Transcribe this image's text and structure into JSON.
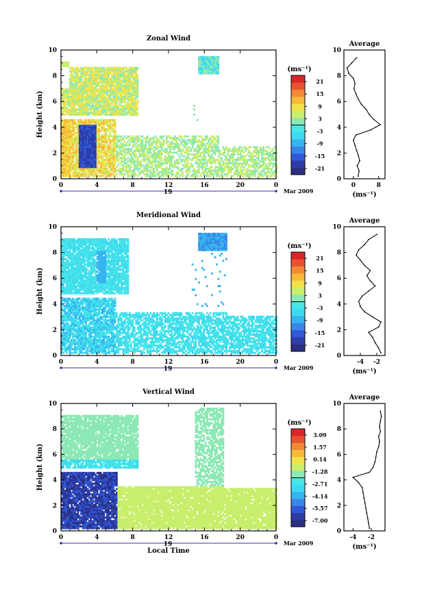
{
  "date_label": "Mar 2009",
  "day_label": "19",
  "colorbar_unit": "(ms⁻¹)",
  "chart_data": [
    {
      "type": "heatmap",
      "title": "Zonal Wind",
      "xlabel": "",
      "ylabel": "Height (km)",
      "xlim": [
        0,
        24
      ],
      "ylim": [
        0,
        10
      ],
      "xticks": [
        "0",
        "4",
        "8",
        "12",
        "16",
        "20",
        "0"
      ],
      "yticks": [
        "0",
        "2",
        "4",
        "6",
        "8",
        "10"
      ],
      "colorbar": {
        "unit": "(ms⁻¹)",
        "ticks": [
          "21",
          "15",
          "9",
          "3",
          "-3",
          "-9",
          "-15",
          "-21"
        ]
      },
      "profile": {
        "title": "Average",
        "xlabel": "(ms⁻¹)",
        "xticks": [
          "0",
          "8"
        ],
        "yticks": [
          "0",
          "2",
          "4",
          "6",
          "8",
          "10"
        ],
        "xlim": [
          -3,
          10
        ],
        "height_km": [
          0.2,
          0.6,
          1.0,
          1.4,
          1.8,
          2.2,
          2.6,
          3.0,
          3.4,
          3.8,
          4.2,
          4.6,
          5.0,
          5.4,
          5.8,
          6.2,
          6.6,
          7.0,
          7.4,
          7.8,
          8.2,
          8.6,
          9.0,
          9.4
        ],
        "value": [
          1.5,
          1.8,
          1.2,
          2.0,
          1.6,
          1.0,
          0.5,
          0.0,
          0.8,
          5.5,
          8.5,
          6.5,
          5.0,
          4.0,
          2.5,
          1.5,
          0.8,
          0.2,
          0.5,
          0.0,
          -1.5,
          -2.0,
          -0.5,
          1.0
        ]
      }
    },
    {
      "type": "heatmap",
      "title": "Meridional Wind",
      "xlabel": "",
      "ylabel": "Height (km)",
      "xlim": [
        0,
        24
      ],
      "ylim": [
        0,
        10
      ],
      "xticks": [
        "0",
        "4",
        "8",
        "12",
        "16",
        "20",
        "0"
      ],
      "yticks": [
        "0",
        "2",
        "4",
        "6",
        "8",
        "10"
      ],
      "colorbar": {
        "unit": "(ms⁻¹)",
        "ticks": [
          "21",
          "15",
          "9",
          "3",
          "-3",
          "-9",
          "-15",
          "-21"
        ]
      },
      "profile": {
        "title": "Average",
        "xlabel": "(ms⁻¹)",
        "xticks": [
          "-4",
          "-2"
        ],
        "yticks": [
          "0",
          "2",
          "4",
          "6",
          "8",
          "10"
        ],
        "xlim": [
          -6,
          -1
        ],
        "height_km": [
          0.2,
          0.6,
          1.0,
          1.4,
          1.8,
          2.2,
          2.6,
          3.0,
          3.4,
          3.8,
          4.2,
          4.6,
          5.0,
          5.4,
          5.8,
          6.2,
          6.6,
          7.0,
          7.4,
          7.8,
          8.2,
          8.6,
          9.0,
          9.4
        ],
        "value": [
          -1.5,
          -1.8,
          -2.2,
          -2.5,
          -3.0,
          -1.8,
          -1.5,
          -2.5,
          -3.5,
          -4.0,
          -4.2,
          -3.8,
          -3.0,
          -2.2,
          -2.8,
          -3.2,
          -2.8,
          -3.5,
          -4.0,
          -4.5,
          -4.2,
          -3.5,
          -3.0,
          -2.0
        ]
      }
    },
    {
      "type": "heatmap",
      "title": "Vertical Wind",
      "xlabel": "Local Time",
      "ylabel": "Height (km)",
      "xlim": [
        0,
        24
      ],
      "ylim": [
        0,
        10
      ],
      "xticks": [
        "0",
        "4",
        "8",
        "12",
        "16",
        "20",
        "0"
      ],
      "yticks": [
        "0",
        "2",
        "4",
        "6",
        "8",
        "10"
      ],
      "colorbar": {
        "unit": "(ms⁻¹)",
        "ticks": [
          "3.09",
          "1.57",
          "0.14",
          "-1.28",
          "-2.71",
          "-4.14",
          "-5.57",
          "-7.00"
        ]
      },
      "profile": {
        "title": "Average",
        "xlabel": "(ms⁻¹)",
        "xticks": [
          "-4",
          "-2"
        ],
        "yticks": [
          "0",
          "2",
          "4",
          "6",
          "8",
          "10"
        ],
        "xlim": [
          -5,
          -0.5
        ],
        "height_km": [
          0.2,
          0.6,
          1.0,
          1.4,
          1.8,
          2.2,
          2.6,
          3.0,
          3.4,
          3.8,
          4.2,
          4.6,
          5.0,
          5.4,
          5.8,
          6.2,
          6.6,
          7.0,
          7.4,
          7.8,
          8.2,
          8.6,
          9.0,
          9.4
        ],
        "value": [
          -2.2,
          -2.3,
          -2.4,
          -2.5,
          -2.6,
          -2.7,
          -2.8,
          -2.9,
          -3.0,
          -3.4,
          -4.0,
          -2.2,
          -1.8,
          -1.6,
          -1.5,
          -1.4,
          -1.2,
          -1.1,
          -1.2,
          -1.0,
          -1.1,
          -1.0,
          -0.9,
          -1.0
        ]
      }
    }
  ]
}
